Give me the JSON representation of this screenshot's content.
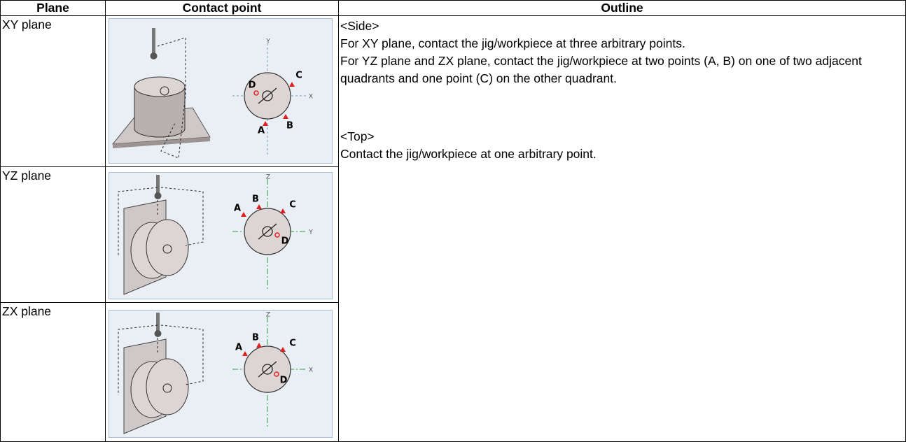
{
  "table": {
    "headers": [
      "Plane",
      "Contact point",
      "Outline"
    ],
    "rows": [
      [
        "XY plane"
      ],
      [
        "YZ plane"
      ],
      [
        "ZX plane"
      ]
    ],
    "outline": {
      "side_heading": "<Side>",
      "side_lines": [
        "For XY plane, contact the jig/workpiece at three arbitrary points.",
        "For YZ plane and ZX plane, contact the jig/workpiece at two points (A, B) on one of two adjacent quadrants and one point (C) on the other quadrant."
      ],
      "top_heading": "<Top>",
      "top_lines": [
        "Contact the jig/workpiece at one arbitrary point."
      ]
    }
  },
  "figures": [
    {
      "vertical_axis": "Y",
      "horizontal_axis": "X",
      "points": [
        "A",
        "B",
        "C",
        "D"
      ]
    },
    {
      "vertical_axis": "Z",
      "horizontal_axis": "Y",
      "points": [
        "A",
        "B",
        "C",
        "D"
      ]
    },
    {
      "vertical_axis": "Z",
      "horizontal_axis": "X",
      "points": [
        "A",
        "B",
        "C",
        "D"
      ]
    }
  ]
}
